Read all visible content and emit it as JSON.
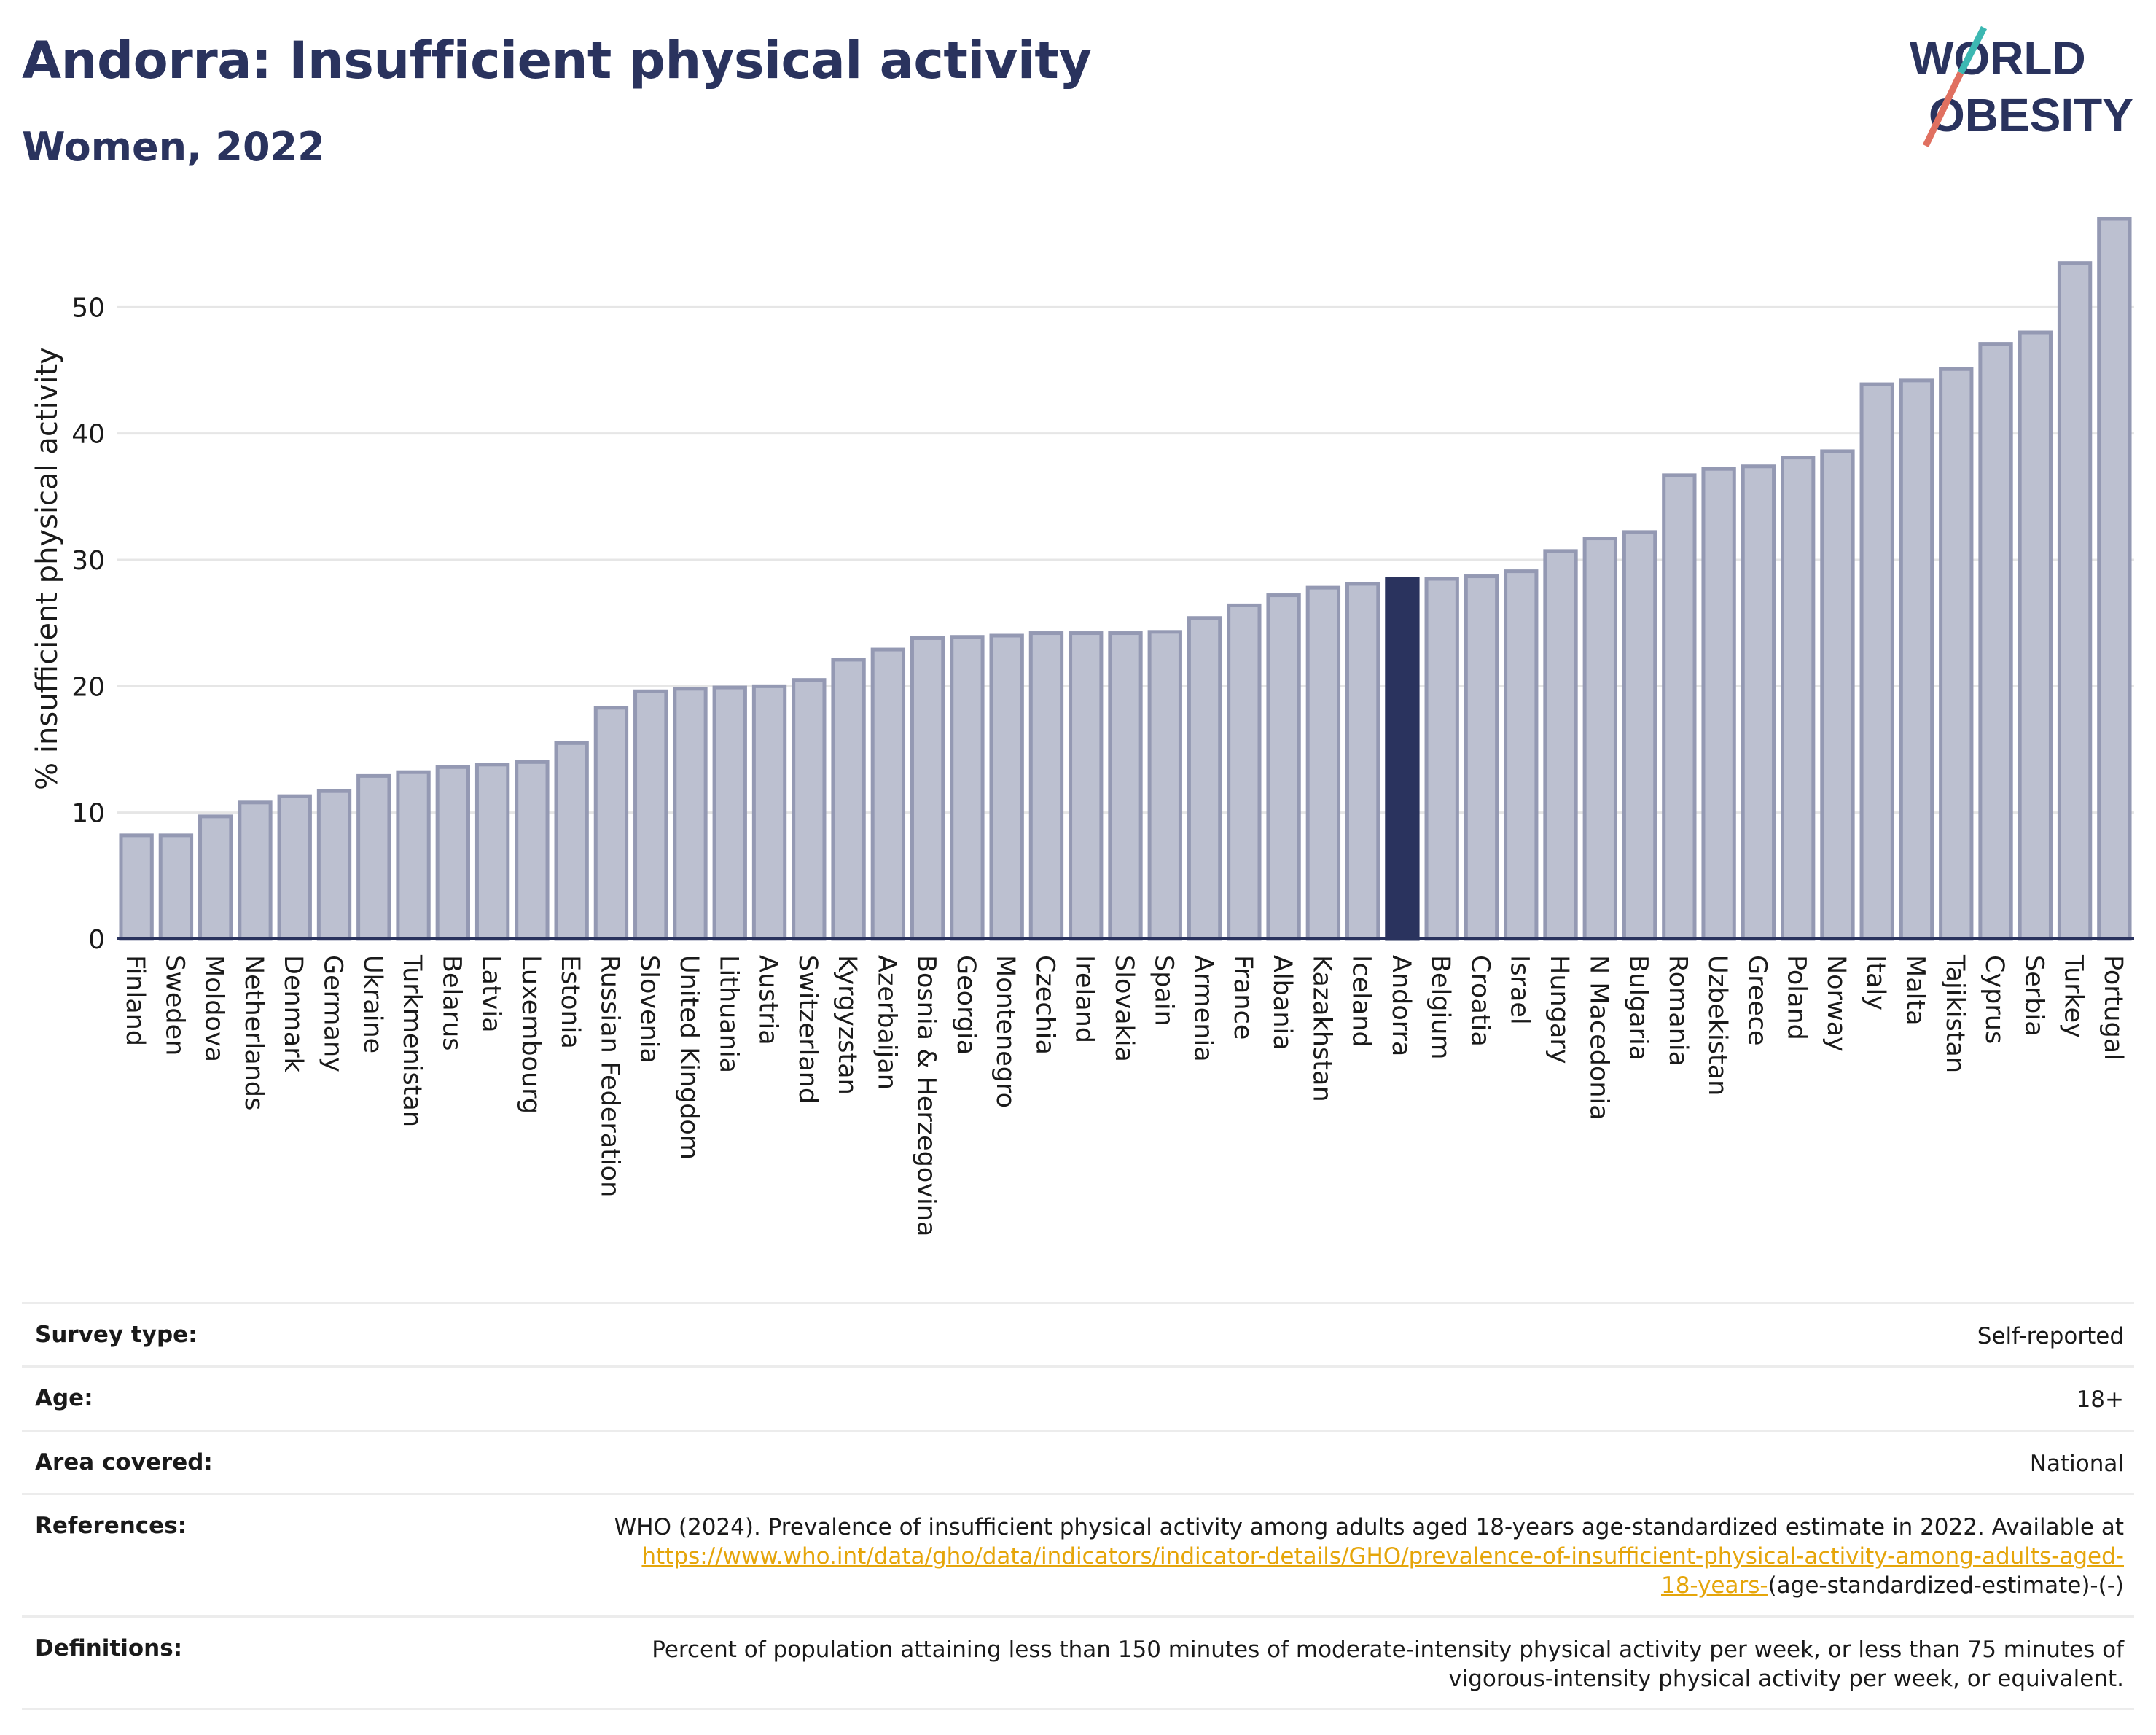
{
  "header": {
    "title": "Andorra: Insufficient physical activity",
    "subtitle": "Women, 2022",
    "logo_line1": "WORLD",
    "logo_line2": "OBESITY"
  },
  "colors": {
    "highlight": "#2a335e",
    "bar_fill": "#bcc0d0",
    "bar_stroke": "#9499b3",
    "accent_teal": "#3cb8b2",
    "accent_coral": "#e07060",
    "link": "#e5a50a"
  },
  "chart_data": {
    "type": "bar",
    "ylabel": "% insufficient physical activity",
    "xlabel": "",
    "ylim": [
      0,
      57
    ],
    "yticks": [
      0,
      10,
      20,
      30,
      40,
      50
    ],
    "grid": true,
    "highlight": "Andorra",
    "categories": [
      "Finland",
      "Sweden",
      "Moldova",
      "Netherlands",
      "Denmark",
      "Germany",
      "Ukraine",
      "Turkmenistan",
      "Belarus",
      "Latvia",
      "Luxembourg",
      "Estonia",
      "Russian Federation",
      "Slovenia",
      "United Kingdom",
      "Lithuania",
      "Austria",
      "Switzerland",
      "Kyrgyzstan",
      "Azerbaijan",
      "Bosnia & Herzegovina",
      "Georgia",
      "Montenegro",
      "Czechia",
      "Ireland",
      "Slovakia",
      "Spain",
      "Armenia",
      "France",
      "Albania",
      "Kazakhstan",
      "Iceland",
      "Andorra",
      "Belgium",
      "Croatia",
      "Israel",
      "Hungary",
      "N Macedonia",
      "Bulgaria",
      "Romania",
      "Uzbekistan",
      "Greece",
      "Poland",
      "Norway",
      "Italy",
      "Malta",
      "Tajikistan",
      "Cyprus",
      "Serbia",
      "Turkey",
      "Portugal"
    ],
    "values": [
      8.2,
      8.2,
      9.7,
      10.8,
      11.3,
      11.7,
      12.9,
      13.2,
      13.6,
      13.8,
      14.0,
      15.5,
      18.3,
      19.6,
      19.8,
      19.9,
      20.0,
      20.5,
      22.1,
      22.9,
      23.8,
      23.9,
      24.0,
      24.2,
      24.2,
      24.2,
      24.3,
      25.4,
      26.4,
      27.2,
      27.8,
      28.1,
      28.5,
      28.5,
      28.7,
      29.1,
      30.7,
      31.7,
      32.2,
      36.7,
      37.2,
      37.4,
      38.1,
      38.6,
      43.9,
      44.2,
      45.1,
      47.1,
      48.0,
      53.5,
      57.0
    ]
  },
  "meta": {
    "survey_type_label": "Survey type:",
    "survey_type_value": "Self-reported",
    "age_label": "Age:",
    "age_value": "18+",
    "area_label": "Area covered:",
    "area_value": "National",
    "references_label": "References:",
    "references_text": "WHO (2024). Prevalence of insufficient physical activity among adults aged 18-years age-standardized estimate in 2022. Available at",
    "references_link": "https://www.who.int/data/gho/data/indicators/indicator-details/GHO/prevalence-of-insufficient-physical-activity-among-adults-aged-18-years-",
    "references_suffix": "(age-standardized-estimate)-(-)",
    "definitions_label": "Definitions:",
    "definitions_value": "Percent of population attaining less than 150 minutes of moderate-intensity physical activity per week, or less than 75 minutes of vigorous-intensity physical activity per week, or equivalent."
  }
}
